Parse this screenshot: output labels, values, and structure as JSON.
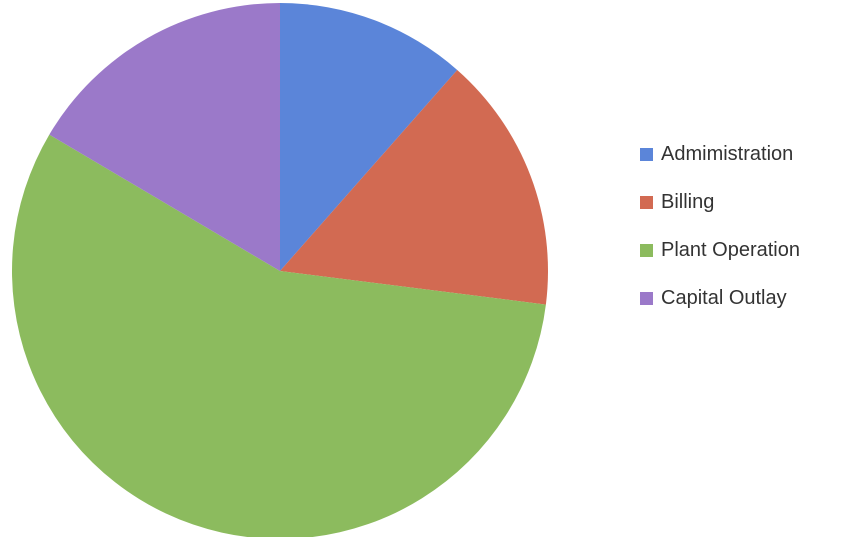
{
  "chart_data": {
    "type": "pie",
    "title": "",
    "categories": [
      "Admimistration",
      "Billing",
      "Plant Operation",
      "Capital Outlay"
    ],
    "values": [
      11.5,
      15.5,
      56.5,
      16.5
    ],
    "colors": [
      "#5b85d9",
      "#d26a52",
      "#8cbb5e",
      "#9b79c9"
    ],
    "start_angle_deg": 0,
    "direction": "clockwise",
    "legend_position": "right"
  }
}
